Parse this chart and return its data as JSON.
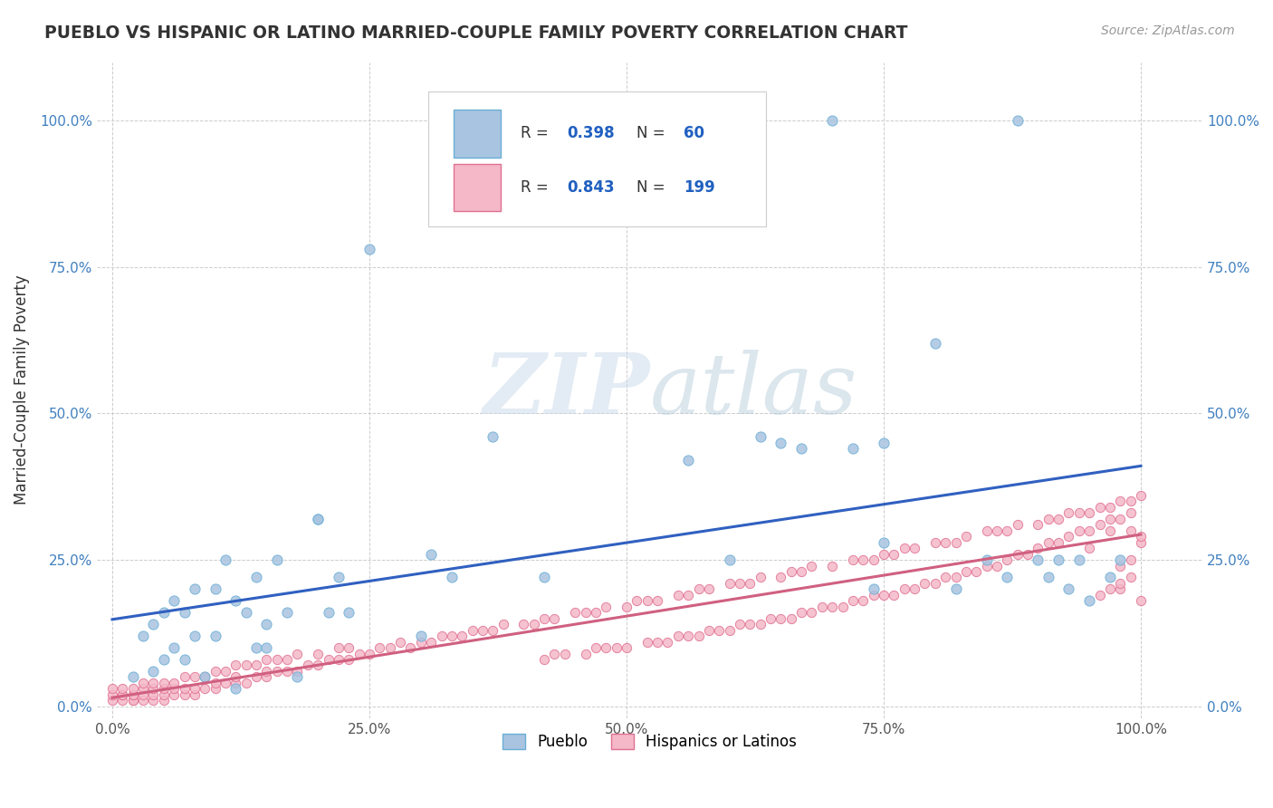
{
  "title": "PUEBLO VS HISPANIC OR LATINO MARRIED-COUPLE FAMILY POVERTY CORRELATION CHART",
  "source": "Source: ZipAtlas.com",
  "ylabel": "Married-Couple Family Poverty",
  "x_tick_labels": [
    "0.0%",
    "25.0%",
    "50.0%",
    "75.0%",
    "100.0%"
  ],
  "y_tick_labels": [
    "0.0%",
    "25.0%",
    "50.0%",
    "75.0%",
    "100.0%"
  ],
  "x_ticks": [
    0,
    0.25,
    0.5,
    0.75,
    1.0
  ],
  "y_ticks": [
    0,
    0.25,
    0.5,
    0.75,
    1.0
  ],
  "watermark_zip": "ZIP",
  "watermark_atlas": "atlas",
  "legend_labels": [
    "Pueblo",
    "Hispanics or Latinos"
  ],
  "pueblo_color": "#a8c4e0",
  "pueblo_edge_color": "#6aaed6",
  "hispanic_color": "#f4b8c8",
  "hispanic_edge_color": "#e07090",
  "pueblo_R": 0.398,
  "pueblo_N": 60,
  "hispanic_R": 0.843,
  "hispanic_N": 199,
  "blue_line_color": "#3060c0",
  "pink_line_color": "#d06080",
  "legend_R_color": "#2060c0",
  "pueblo_x": [
    0.02,
    0.03,
    0.04,
    0.04,
    0.05,
    0.05,
    0.06,
    0.06,
    0.07,
    0.07,
    0.08,
    0.08,
    0.09,
    0.1,
    0.1,
    0.11,
    0.12,
    0.12,
    0.13,
    0.14,
    0.14,
    0.15,
    0.15,
    0.16,
    0.17,
    0.18,
    0.2,
    0.2,
    0.21,
    0.22,
    0.23,
    0.25,
    0.3,
    0.31,
    0.33,
    0.37,
    0.42,
    0.56,
    0.6,
    0.63,
    0.65,
    0.67,
    0.7,
    0.72,
    0.74,
    0.75,
    0.75,
    0.8,
    0.82,
    0.85,
    0.87,
    0.88,
    0.9,
    0.91,
    0.92,
    0.93,
    0.94,
    0.95,
    0.97,
    0.98
  ],
  "pueblo_y": [
    0.05,
    0.12,
    0.06,
    0.14,
    0.08,
    0.16,
    0.1,
    0.18,
    0.08,
    0.16,
    0.12,
    0.2,
    0.05,
    0.12,
    0.2,
    0.25,
    0.03,
    0.18,
    0.16,
    0.1,
    0.22,
    0.1,
    0.14,
    0.25,
    0.16,
    0.05,
    0.32,
    0.32,
    0.16,
    0.22,
    0.16,
    0.78,
    0.12,
    0.26,
    0.22,
    0.46,
    0.22,
    0.42,
    0.25,
    0.46,
    0.45,
    0.44,
    1.0,
    0.44,
    0.2,
    0.28,
    0.45,
    0.62,
    0.2,
    0.25,
    0.22,
    1.0,
    0.25,
    0.22,
    0.25,
    0.2,
    0.25,
    0.18,
    0.22,
    0.25
  ],
  "hispanic_x": [
    0.0,
    0.0,
    0.0,
    0.01,
    0.01,
    0.01,
    0.01,
    0.02,
    0.02,
    0.02,
    0.02,
    0.02,
    0.03,
    0.03,
    0.03,
    0.03,
    0.04,
    0.04,
    0.04,
    0.04,
    0.05,
    0.05,
    0.05,
    0.05,
    0.06,
    0.06,
    0.06,
    0.07,
    0.07,
    0.07,
    0.08,
    0.08,
    0.08,
    0.09,
    0.09,
    0.1,
    0.1,
    0.1,
    0.11,
    0.11,
    0.12,
    0.12,
    0.12,
    0.13,
    0.13,
    0.14,
    0.14,
    0.15,
    0.15,
    0.15,
    0.16,
    0.16,
    0.17,
    0.17,
    0.18,
    0.18,
    0.19,
    0.2,
    0.2,
    0.21,
    0.22,
    0.22,
    0.23,
    0.23,
    0.24,
    0.25,
    0.26,
    0.27,
    0.28,
    0.29,
    0.3,
    0.31,
    0.32,
    0.33,
    0.34,
    0.35,
    0.36,
    0.37,
    0.38,
    0.4,
    0.41,
    0.42,
    0.43,
    0.45,
    0.46,
    0.47,
    0.48,
    0.5,
    0.51,
    0.52,
    0.53,
    0.55,
    0.56,
    0.57,
    0.58,
    0.6,
    0.61,
    0.62,
    0.63,
    0.65,
    0.66,
    0.67,
    0.68,
    0.7,
    0.72,
    0.73,
    0.74,
    0.75,
    0.76,
    0.77,
    0.78,
    0.8,
    0.81,
    0.82,
    0.83,
    0.85,
    0.86,
    0.87,
    0.88,
    0.9,
    0.91,
    0.92,
    0.93,
    0.94,
    0.95,
    0.96,
    0.97,
    0.98,
    0.99,
    1.0,
    0.42,
    0.43,
    0.44,
    0.46,
    0.47,
    0.48,
    0.49,
    0.5,
    0.52,
    0.53,
    0.54,
    0.55,
    0.56,
    0.57,
    0.58,
    0.59,
    0.6,
    0.61,
    0.62,
    0.63,
    0.64,
    0.65,
    0.66,
    0.67,
    0.68,
    0.69,
    0.7,
    0.71,
    0.72,
    0.73,
    0.74,
    0.75,
    0.76,
    0.77,
    0.78,
    0.79,
    0.8,
    0.81,
    0.82,
    0.83,
    0.84,
    0.85,
    0.86,
    0.87,
    0.88,
    0.89,
    0.9,
    0.91,
    0.92,
    0.93,
    0.94,
    0.95,
    0.96,
    0.97,
    0.98,
    0.99,
    1.0,
    0.95,
    0.97,
    0.98,
    0.99,
    1.0,
    0.97,
    0.98,
    0.99,
    0.96,
    0.98,
    0.99,
    1.0
  ],
  "hispanic_y": [
    0.01,
    0.02,
    0.03,
    0.01,
    0.02,
    0.02,
    0.03,
    0.01,
    0.01,
    0.02,
    0.02,
    0.03,
    0.01,
    0.02,
    0.03,
    0.04,
    0.01,
    0.02,
    0.03,
    0.04,
    0.01,
    0.02,
    0.03,
    0.04,
    0.02,
    0.03,
    0.04,
    0.02,
    0.03,
    0.05,
    0.02,
    0.03,
    0.05,
    0.03,
    0.05,
    0.03,
    0.04,
    0.06,
    0.04,
    0.06,
    0.04,
    0.05,
    0.07,
    0.04,
    0.07,
    0.05,
    0.07,
    0.05,
    0.06,
    0.08,
    0.06,
    0.08,
    0.06,
    0.08,
    0.06,
    0.09,
    0.07,
    0.07,
    0.09,
    0.08,
    0.08,
    0.1,
    0.08,
    0.1,
    0.09,
    0.09,
    0.1,
    0.1,
    0.11,
    0.1,
    0.11,
    0.11,
    0.12,
    0.12,
    0.12,
    0.13,
    0.13,
    0.13,
    0.14,
    0.14,
    0.14,
    0.15,
    0.15,
    0.16,
    0.16,
    0.16,
    0.17,
    0.17,
    0.18,
    0.18,
    0.18,
    0.19,
    0.19,
    0.2,
    0.2,
    0.21,
    0.21,
    0.21,
    0.22,
    0.22,
    0.23,
    0.23,
    0.24,
    0.24,
    0.25,
    0.25,
    0.25,
    0.26,
    0.26,
    0.27,
    0.27,
    0.28,
    0.28,
    0.28,
    0.29,
    0.3,
    0.3,
    0.3,
    0.31,
    0.31,
    0.32,
    0.32,
    0.33,
    0.33,
    0.33,
    0.34,
    0.34,
    0.35,
    0.35,
    0.36,
    0.08,
    0.09,
    0.09,
    0.09,
    0.1,
    0.1,
    0.1,
    0.1,
    0.11,
    0.11,
    0.11,
    0.12,
    0.12,
    0.12,
    0.13,
    0.13,
    0.13,
    0.14,
    0.14,
    0.14,
    0.15,
    0.15,
    0.15,
    0.16,
    0.16,
    0.17,
    0.17,
    0.17,
    0.18,
    0.18,
    0.19,
    0.19,
    0.19,
    0.2,
    0.2,
    0.21,
    0.21,
    0.22,
    0.22,
    0.23,
    0.23,
    0.24,
    0.24,
    0.25,
    0.26,
    0.26,
    0.27,
    0.28,
    0.28,
    0.29,
    0.3,
    0.3,
    0.31,
    0.32,
    0.32,
    0.33,
    0.18,
    0.27,
    0.3,
    0.2,
    0.22,
    0.28,
    0.2,
    0.24,
    0.3,
    0.19,
    0.21,
    0.25,
    0.29
  ]
}
